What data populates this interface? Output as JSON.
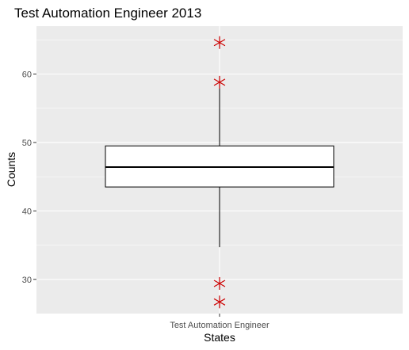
{
  "chart_data": {
    "type": "box",
    "title": "Test Automation Engineer 2013",
    "xlabel": "States",
    "ylabel": "Counts",
    "categories": [
      "Test Automation Engineer"
    ],
    "ylim": [
      25,
      67
    ],
    "yticks": [
      30,
      40,
      50,
      60
    ],
    "grid": true,
    "box": {
      "q1": 43.5,
      "median": 46.4,
      "q3": 49.5,
      "whisker_low": 34.7,
      "whisker_high": 58.8
    },
    "points": [
      64.6,
      58.8,
      29.4,
      26.7
    ],
    "colors": {
      "panel": "#ebebeb",
      "grid_major": "#ffffff",
      "box_fill": "#ffffff",
      "box_line": "#000000",
      "points": "#cc0000"
    }
  }
}
